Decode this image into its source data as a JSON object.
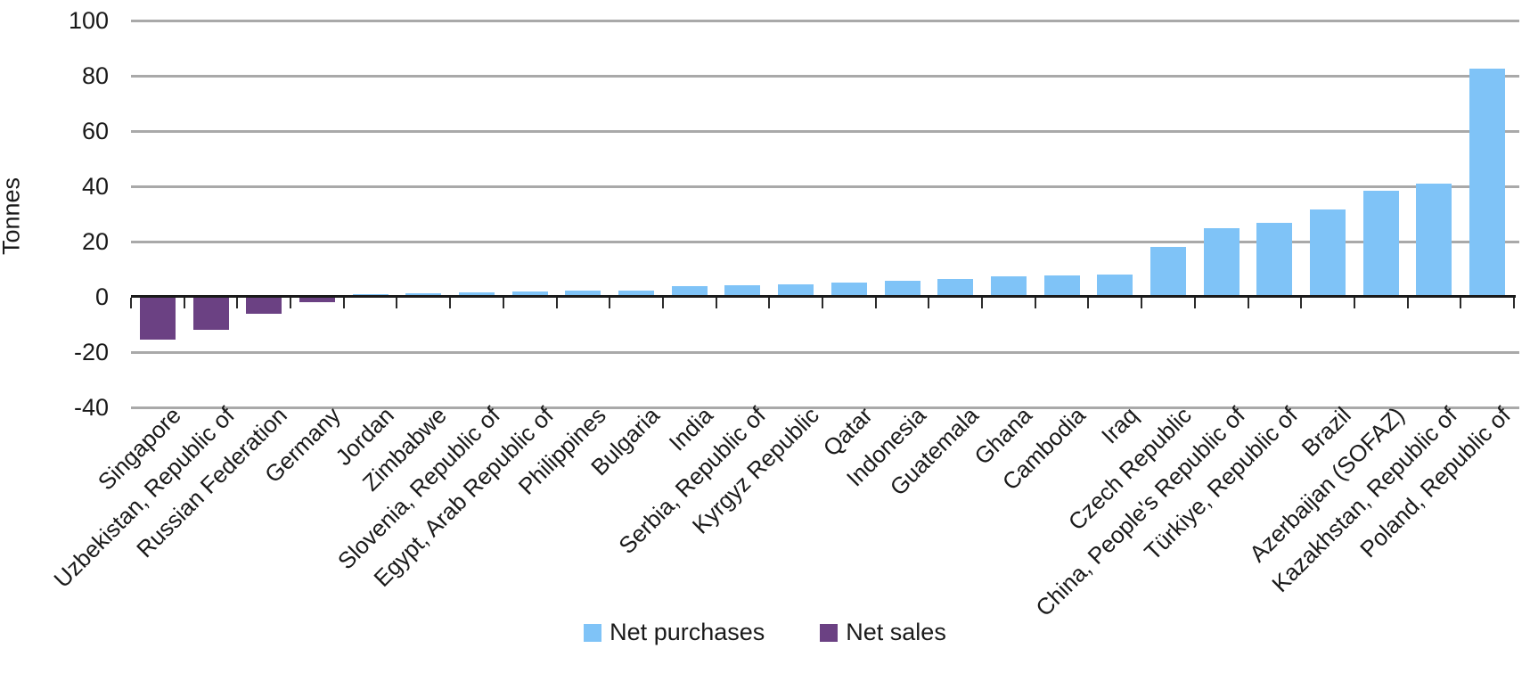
{
  "chart_data": {
    "type": "bar",
    "title": "",
    "xlabel": "",
    "ylabel": "Tonnes",
    "ylim": [
      -40,
      100
    ],
    "yticks": [
      100,
      80,
      60,
      40,
      20,
      0,
      -20,
      -40
    ],
    "grid": true,
    "legend_position": "bottom-center",
    "legend": [
      {
        "name": "Net purchases",
        "color": "#7fc3f7"
      },
      {
        "name": "Net sales",
        "color": "#6b4183"
      }
    ],
    "points": [
      {
        "category": "Singapore",
        "value": -15.5,
        "series": "Net sales"
      },
      {
        "category": "Uzbekistan, Republic of",
        "value": -12,
        "series": "Net sales"
      },
      {
        "category": "Russian Federation",
        "value": -6,
        "series": "Net sales"
      },
      {
        "category": "Germany",
        "value": -2,
        "series": "Net sales"
      },
      {
        "category": "Jordan",
        "value": 1,
        "series": "Net purchases"
      },
      {
        "category": "Zimbabwe",
        "value": 1.2,
        "series": "Net purchases"
      },
      {
        "category": "Slovenia, Republic of",
        "value": 1.5,
        "series": "Net purchases"
      },
      {
        "category": "Egypt, Arab Republic of",
        "value": 2,
        "series": "Net purchases"
      },
      {
        "category": "Philippines",
        "value": 2.2,
        "series": "Net purchases"
      },
      {
        "category": "Bulgaria",
        "value": 2.4,
        "series": "Net purchases"
      },
      {
        "category": "India",
        "value": 4,
        "series": "Net purchases"
      },
      {
        "category": "Serbia, Republic of",
        "value": 4.1,
        "series": "Net purchases"
      },
      {
        "category": "Kyrgyz Republic",
        "value": 4.4,
        "series": "Net purchases"
      },
      {
        "category": "Qatar",
        "value": 5.2,
        "series": "Net purchases"
      },
      {
        "category": "Indonesia",
        "value": 5.8,
        "series": "Net purchases"
      },
      {
        "category": "Guatemala",
        "value": 6.3,
        "series": "Net purchases"
      },
      {
        "category": "Ghana",
        "value": 7.4,
        "series": "Net purchases"
      },
      {
        "category": "Cambodia",
        "value": 7.7,
        "series": "Net purchases"
      },
      {
        "category": "Iraq",
        "value": 8.1,
        "series": "Net purchases"
      },
      {
        "category": "Czech Republic",
        "value": 18,
        "series": "Net purchases"
      },
      {
        "category": "China, People's Republic of",
        "value": 24.8,
        "series": "Net purchases"
      },
      {
        "category": "Türkiye, Republic of",
        "value": 26.8,
        "series": "Net purchases"
      },
      {
        "category": "Brazil",
        "value": 31.6,
        "series": "Net purchases"
      },
      {
        "category": "Azerbaijan (SOFAZ)",
        "value": 38.4,
        "series": "Net purchases"
      },
      {
        "category": "Kazakhstan, Republic of",
        "value": 41,
        "series": "Net purchases"
      },
      {
        "category": "Poland, Republic of",
        "value": 82.5,
        "series": "Net purchases"
      }
    ],
    "colors": {
      "net_purchases": "#7fc3f7",
      "net_sales": "#6b4183",
      "gridline": "#a9a9a9",
      "axis": "#1a1a1a"
    }
  }
}
